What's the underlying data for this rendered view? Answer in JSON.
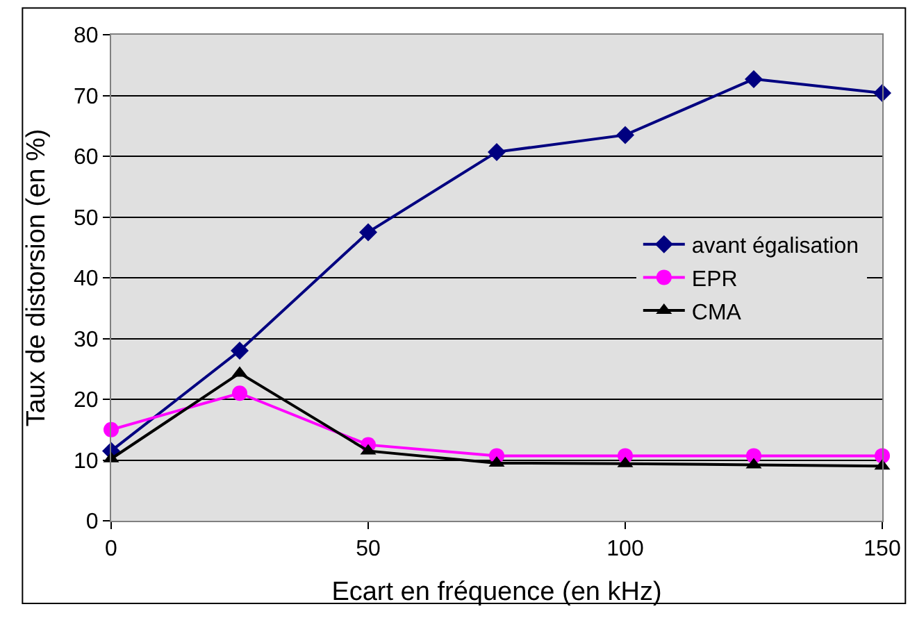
{
  "chart_data": {
    "type": "line",
    "xlabel": "Ecart en fréquence (en kHz)",
    "ylabel": "Taux de distorsion (en %)",
    "x": [
      0,
      25,
      50,
      75,
      100,
      125,
      150
    ],
    "series": [
      {
        "name": "avant égalisation",
        "color": "#000080",
        "marker": "diamond",
        "values": [
          11.5,
          28,
          47.5,
          60.7,
          63.5,
          72.7,
          70.4
        ]
      },
      {
        "name": "EPR",
        "color": "#ff00ff",
        "marker": "circle",
        "values": [
          15,
          21,
          12.5,
          10.7,
          10.7,
          10.7,
          10.7
        ]
      },
      {
        "name": "CMA",
        "color": "#000000",
        "marker": "triangle",
        "values": [
          10.2,
          24.3,
          11.5,
          9.5,
          9.4,
          9.2,
          9.0
        ]
      }
    ],
    "xlim": [
      0,
      150
    ],
    "xticks": [
      0,
      50,
      100,
      150
    ],
    "ylim": [
      0,
      80
    ],
    "yticks": [
      0,
      10,
      20,
      30,
      40,
      50,
      60,
      70,
      80
    ],
    "grid": "y",
    "legend": "right",
    "line_style": "solid"
  }
}
